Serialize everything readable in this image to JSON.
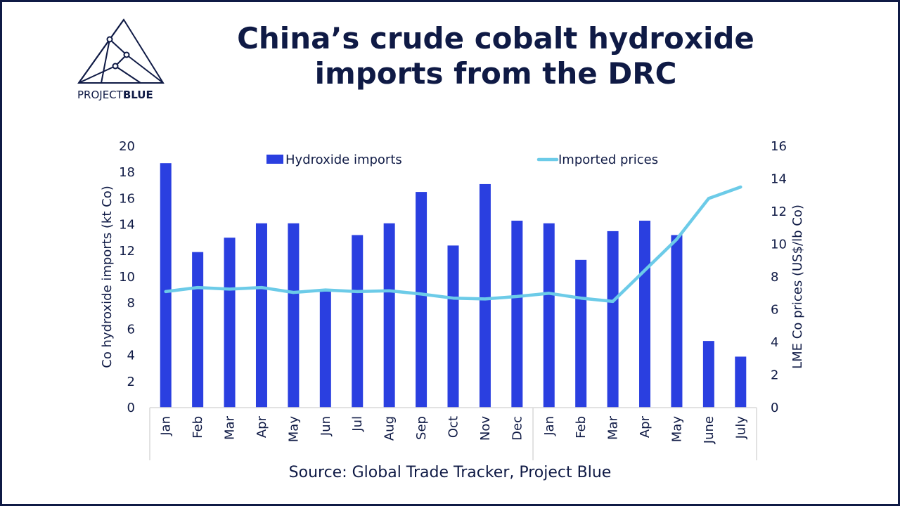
{
  "brand": {
    "logo_text_light": "PROJECT",
    "logo_text_bold": "BLUE"
  },
  "title_line1": "China’s crude cobalt hydroxide",
  "title_line2": "imports from the DRC",
  "source": "Source: Global Trade Tracker, Project Blue",
  "colors": {
    "bar": "#2a3fe0",
    "line": "#6ccbe8",
    "text": "#0f1a45",
    "axis": "#d9d9d9"
  },
  "chart_data": {
    "type": "bar",
    "categories": [
      "Jan",
      "Feb",
      "Mar",
      "Apr",
      "May",
      "Jun",
      "Jul",
      "Aug",
      "Sep",
      "Oct",
      "Nov",
      "Dec",
      "Jan",
      "Feb",
      "Mar",
      "Apr",
      "May",
      "June",
      "July"
    ],
    "series": [
      {
        "name": "Hydroxide imports",
        "type": "bar",
        "axis": "left",
        "values": [
          18.7,
          11.9,
          13.0,
          14.1,
          14.1,
          8.9,
          13.2,
          14.1,
          16.5,
          12.4,
          17.1,
          14.3,
          14.1,
          11.3,
          13.5,
          14.3,
          13.2,
          5.1,
          3.9
        ]
      },
      {
        "name": "Imported prices",
        "type": "line",
        "axis": "right",
        "values": [
          7.1,
          7.35,
          7.25,
          7.35,
          7.05,
          7.2,
          7.1,
          7.15,
          6.95,
          6.7,
          6.65,
          6.8,
          7.0,
          6.7,
          6.5,
          8.4,
          10.3,
          12.8,
          13.5
        ]
      }
    ],
    "ylabel": "Co hydroxide imports (kt Co)",
    "ylabel_right": "LME Co prices (US$/lb Co)",
    "ylim": [
      0,
      20
    ],
    "yticks": [
      "0",
      "2",
      "4",
      "6",
      "8",
      "10",
      "12",
      "14",
      "16",
      "18",
      "20"
    ],
    "ylim_right": [
      0,
      16
    ],
    "yticks_right": [
      "0",
      "2",
      "4",
      "6",
      "8",
      "10",
      "12",
      "14",
      "16"
    ],
    "grid": false,
    "legend": "top-center"
  }
}
